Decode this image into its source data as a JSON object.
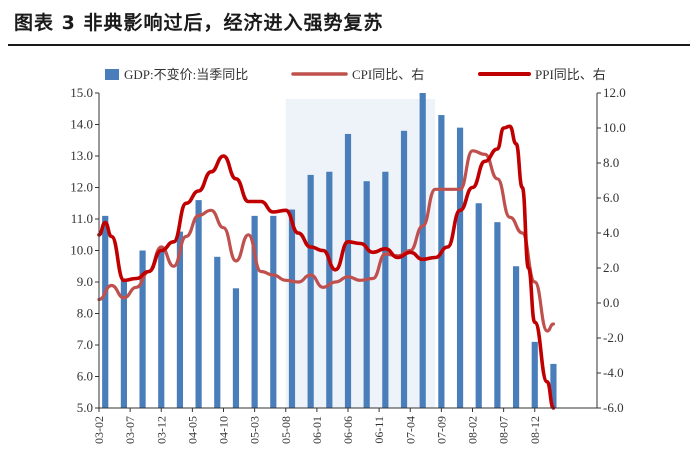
{
  "title": "图表 3  非典影响过后，经济进入强势复苏",
  "chart_data": {
    "type": "bar+line",
    "colors": {
      "gdp": "#4a7ebb",
      "cpi": "#c0504d",
      "ppi": "#c00000",
      "shade": "#eef3f9"
    },
    "legend": [
      {
        "key": "gdp",
        "label": "GDP:不变价:当季同比"
      },
      {
        "key": "cpi",
        "label": "CPI同比、右"
      },
      {
        "key": "ppi",
        "label": "PPI同比、右"
      }
    ],
    "x_start": "2003-02",
    "x_months": 81,
    "x_tick_labels": [
      "2003-02",
      "2003-07",
      "2003-12",
      "2004-05",
      "2004-10",
      "2005-03",
      "2005-08",
      "2006-01",
      "2006-06",
      "2006-11",
      "2007-04",
      "2007-09",
      "2008-02",
      "2008-07",
      "2008-12"
    ],
    "x_tick_display": [
      "03-02",
      "03-07",
      "03-12",
      "04-05",
      "04-10",
      "05-03",
      "05-08",
      "06-01",
      "06-06",
      "06-11",
      "07-04",
      "07-09",
      "08-02",
      "08-07",
      "08-12"
    ],
    "y_left": {
      "min": 5.0,
      "max": 15.0,
      "step": 1.0,
      "ticks": [
        "5.0",
        "6.0",
        "7.0",
        "8.0",
        "9.0",
        "10.0",
        "11.0",
        "12.0",
        "13.0",
        "14.0",
        "15.0"
      ]
    },
    "y_right": {
      "min": -6.0,
      "max": 12.0,
      "step": 2.0,
      "ticks": [
        "-6.0",
        "-4.0",
        "-2.0",
        "0.0",
        "2.0",
        "4.0",
        "6.0",
        "8.0",
        "10.0",
        "12.0"
      ]
    },
    "shade_range": [
      "2005-08",
      "2007-08"
    ],
    "gdp": [
      {
        "x": "2003-03",
        "y": 11.1
      },
      {
        "x": "2003-06",
        "y": 9.1
      },
      {
        "x": "2003-09",
        "y": 10.0
      },
      {
        "x": "2003-12",
        "y": 10.0
      },
      {
        "x": "2004-03",
        "y": 10.6
      },
      {
        "x": "2004-06",
        "y": 11.6
      },
      {
        "x": "2004-09",
        "y": 9.8
      },
      {
        "x": "2004-12",
        "y": 8.8
      },
      {
        "x": "2005-03",
        "y": 11.1
      },
      {
        "x": "2005-06",
        "y": 11.1
      },
      {
        "x": "2005-09",
        "y": 11.3
      },
      {
        "x": "2005-12",
        "y": 12.4
      },
      {
        "x": "2006-03",
        "y": 12.5
      },
      {
        "x": "2006-06",
        "y": 13.7
      },
      {
        "x": "2006-09",
        "y": 12.2
      },
      {
        "x": "2006-12",
        "y": 12.5
      },
      {
        "x": "2007-03",
        "y": 13.8
      },
      {
        "x": "2007-06",
        "y": 15.0
      },
      {
        "x": "2007-09",
        "y": 14.3
      },
      {
        "x": "2007-12",
        "y": 13.9
      },
      {
        "x": "2008-03",
        "y": 11.5
      },
      {
        "x": "2008-06",
        "y": 10.9
      },
      {
        "x": "2008-09",
        "y": 9.5
      },
      {
        "x": "2008-12",
        "y": 7.1
      },
      {
        "x": "2009-03",
        "y": 6.4
      }
    ],
    "cpi": [
      [
        "2003-02",
        0.2
      ],
      [
        "2003-04",
        1.0
      ],
      [
        "2003-06",
        0.3
      ],
      [
        "2003-08",
        0.9
      ],
      [
        "2003-10",
        1.8
      ],
      [
        "2003-12",
        3.2
      ],
      [
        "2004-02",
        2.1
      ],
      [
        "2004-04",
        3.8
      ],
      [
        "2004-06",
        5.0
      ],
      [
        "2004-08",
        5.3
      ],
      [
        "2004-10",
        4.3
      ],
      [
        "2004-12",
        2.4
      ],
      [
        "2005-02",
        3.9
      ],
      [
        "2005-04",
        1.8
      ],
      [
        "2005-06",
        1.6
      ],
      [
        "2005-08",
        1.3
      ],
      [
        "2005-10",
        1.2
      ],
      [
        "2005-12",
        1.6
      ],
      [
        "2006-02",
        0.9
      ],
      [
        "2006-04",
        1.2
      ],
      [
        "2006-06",
        1.5
      ],
      [
        "2006-08",
        1.3
      ],
      [
        "2006-10",
        1.4
      ],
      [
        "2006-12",
        2.8
      ],
      [
        "2007-02",
        2.7
      ],
      [
        "2007-04",
        3.0
      ],
      [
        "2007-06",
        4.4
      ],
      [
        "2007-08",
        6.5
      ],
      [
        "2007-10",
        6.5
      ],
      [
        "2007-12",
        6.5
      ],
      [
        "2008-02",
        8.7
      ],
      [
        "2008-04",
        8.5
      ],
      [
        "2008-06",
        7.1
      ],
      [
        "2008-08",
        4.9
      ],
      [
        "2008-10",
        4.0
      ],
      [
        "2008-12",
        1.2
      ],
      [
        "2009-02",
        -1.6
      ],
      [
        "2009-03",
        -1.2
      ]
    ],
    "ppi": [
      [
        "2003-02",
        3.9
      ],
      [
        "2003-03",
        4.6
      ],
      [
        "2003-04",
        3.8
      ],
      [
        "2003-06",
        1.3
      ],
      [
        "2003-08",
        1.4
      ],
      [
        "2003-10",
        1.8
      ],
      [
        "2003-12",
        3.0
      ],
      [
        "2004-02",
        3.5
      ],
      [
        "2004-04",
        5.7
      ],
      [
        "2004-06",
        6.4
      ],
      [
        "2004-08",
        7.5
      ],
      [
        "2004-10",
        8.4
      ],
      [
        "2004-12",
        7.1
      ],
      [
        "2005-02",
        5.8
      ],
      [
        "2005-04",
        5.8
      ],
      [
        "2005-06",
        5.2
      ],
      [
        "2005-08",
        5.3
      ],
      [
        "2005-10",
        4.0
      ],
      [
        "2005-12",
        3.2
      ],
      [
        "2006-02",
        3.0
      ],
      [
        "2006-04",
        1.9
      ],
      [
        "2006-06",
        3.5
      ],
      [
        "2006-08",
        3.4
      ],
      [
        "2006-10",
        2.9
      ],
      [
        "2006-12",
        3.1
      ],
      [
        "2007-02",
        2.6
      ],
      [
        "2007-04",
        2.9
      ],
      [
        "2007-06",
        2.5
      ],
      [
        "2007-08",
        2.6
      ],
      [
        "2007-10",
        3.2
      ],
      [
        "2007-12",
        5.3
      ],
      [
        "2008-02",
        6.6
      ],
      [
        "2008-04",
        8.1
      ],
      [
        "2008-06",
        8.8
      ],
      [
        "2008-07",
        10.0
      ],
      [
        "2008-08",
        10.1
      ],
      [
        "2008-09",
        9.1
      ],
      [
        "2008-10",
        6.6
      ],
      [
        "2008-11",
        2.0
      ],
      [
        "2008-12",
        -1.1
      ],
      [
        "2009-02",
        -4.5
      ],
      [
        "2009-03",
        -6.0
      ]
    ]
  }
}
